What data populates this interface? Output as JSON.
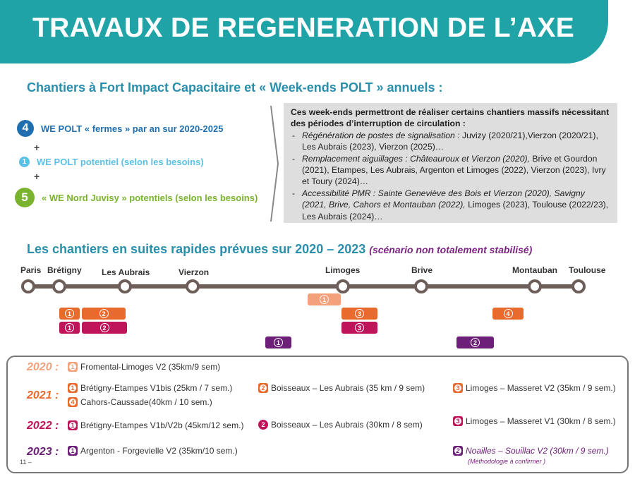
{
  "header": {
    "title": "TRAVAUX DE REGENERATION DE L’AXE"
  },
  "section1": {
    "title": "Chantiers à Fort Impact Capacitaire et « Week-ends POLT » annuels :"
  },
  "we": [
    {
      "num": "4",
      "label": "WE POLT « fermes » par an sur 2020-2025",
      "color": "#1f6fb0",
      "text_color": "#1f6fb0"
    },
    {
      "num": "1",
      "label": "WE POLT potentiel (selon les besoins)",
      "color": "#5bc0e8",
      "text_color": "#5bc0e8"
    },
    {
      "num": "5",
      "label": "« WE Nord Juvisy » potentiels (selon les besoins)",
      "color": "#7ab32e",
      "text_color": "#7ab32e"
    }
  ],
  "plus": "+",
  "info": {
    "lead": "Ces week-ends permettront de réaliser certains chantiers massifs nécessitant des périodes d’interruption de circulation :",
    "items": [
      {
        "label": "Régénération de postes de signalisation :",
        "text": " Juvizy (2020/21),Vierzon (2020/21), Les Aubrais (2023), Vierzon (2025)…"
      },
      {
        "label": "Remplacement aiguillages : Châteauroux et Vierzon (2020),",
        "text": " Brive et Gourdon (2021), Etampes, Les Aubrais, Argenton et Limoges (2022), Vierzon (2023), Ivry et Toury (2024)…"
      },
      {
        "label": "Accessibilité PMR :  Sainte Geneviève des Bois et  Vierzon (2020), Savigny (2021, Brive, Cahors et Montauban (2022),",
        "text": " Limoges (2023), Toulouse (2022/23), Les Aubrais (2024)…"
      }
    ]
  },
  "section2": {
    "title": "Les chantiers en suites rapides prévues sur 2020 – 2023",
    "note": "(scénario non totalement stabilisé)"
  },
  "stations": [
    "Paris",
    "Brétigny",
    "Les Aubrais",
    "Vierzon",
    "Limoges",
    "Brive",
    "Montauban",
    "Toulouse"
  ],
  "chips": [
    "1",
    "2",
    "1",
    "2",
    "1",
    "3",
    "3",
    "4",
    "1",
    "2"
  ],
  "colors": {
    "2020": "#f4a07a",
    "2021": "#e86a2c",
    "2022": "#c0145a",
    "2023": "#6d2077",
    "teal": "#1fa3a6",
    "track": "#6e5e5a"
  },
  "legend": {
    "y2020": {
      "label": "2020 :",
      "items": [
        {
          "num": "1",
          "text": "Fromental-Limoges V2 (35km/9 sem)"
        }
      ]
    },
    "y2021": {
      "label": "2021 :",
      "items": [
        {
          "num": "1",
          "text": "Brétigny-Etampes V1bis (25km / 7 sem.)"
        },
        {
          "num": "4",
          "text": "Cahors-Caussade(40km / 10 sem.)"
        },
        {
          "num": "2",
          "text": "Boisseaux – Les Aubrais (35 km / 9 sem)"
        },
        {
          "num": "3",
          "text": "Limoges – Masseret  V2 (35km / 9 sem.)"
        }
      ]
    },
    "y2022": {
      "label": "2022 :",
      "items": [
        {
          "num": "1",
          "text": "Brétigny-Etampes V1b/V2b (45km/12 sem.)"
        },
        {
          "num": "2",
          "text": "Boisseaux – Les Aubrais (30km / 8 sem)"
        },
        {
          "num": "3",
          "text": "Limoges – Masseret V1 (30km / 8 sem.)"
        }
      ]
    },
    "y2023": {
      "label": "2023 :",
      "items": [
        {
          "num": "1",
          "text": "Argenton - Forgevielle V2 (35km/10 sem.)"
        },
        {
          "num": "2",
          "text": "Noailles – Souillac  V2 (30km / 9 sem.)"
        }
      ],
      "note": "(Méthodologie à confirmer )"
    }
  },
  "page_number": "11 –"
}
